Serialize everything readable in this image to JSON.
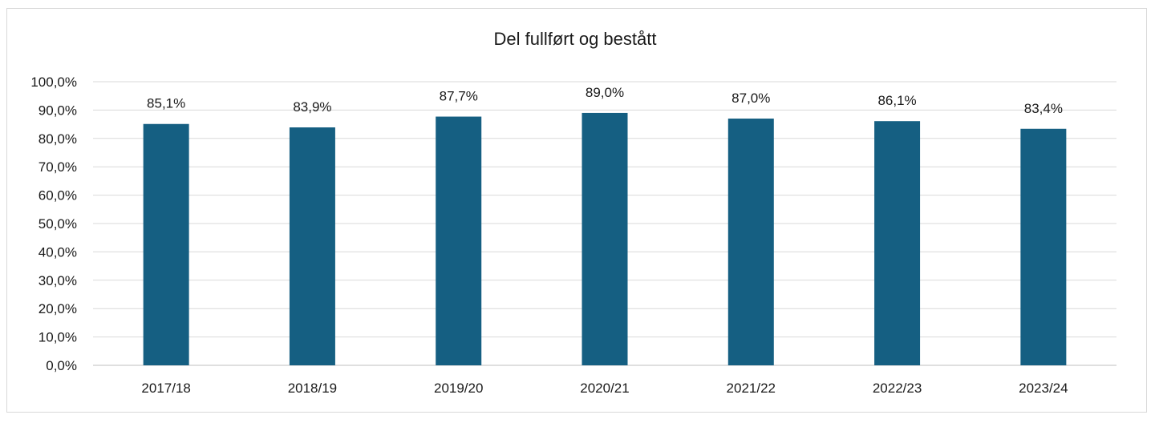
{
  "chart_data": {
    "type": "bar",
    "title": "Del fullført og bestått",
    "xlabel": "",
    "ylabel": "",
    "categories": [
      "2017/18",
      "2018/19",
      "2019/20",
      "2020/21",
      "2021/22",
      "2022/23",
      "2023/24"
    ],
    "values": [
      85.1,
      83.9,
      87.7,
      89.0,
      87.0,
      86.1,
      83.4
    ],
    "data_labels": [
      "85,1%",
      "83,9%",
      "87,7%",
      "89,0%",
      "87,0%",
      "86,1%",
      "83,4%"
    ],
    "ylim": [
      0,
      100
    ],
    "yticks": [
      0,
      10,
      20,
      30,
      40,
      50,
      60,
      70,
      80,
      90,
      100
    ],
    "ytick_labels": [
      "0,0%",
      "10,0%",
      "20,0%",
      "30,0%",
      "40,0%",
      "50,0%",
      "60,0%",
      "70,0%",
      "80,0%",
      "90,0%",
      "100,0%"
    ],
    "grid": true,
    "legend": "none",
    "bar_color": "#155f82"
  }
}
